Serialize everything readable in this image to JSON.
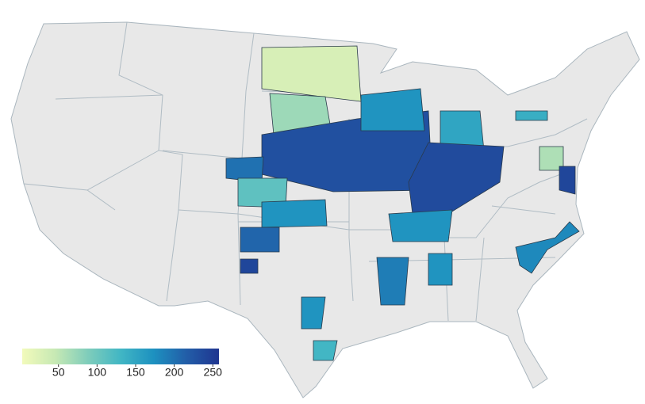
{
  "map": {
    "colorscale": [
      "#f2fabb",
      "#c7e9b4",
      "#7fcdbb",
      "#41b6c4",
      "#1d91c0",
      "#225ea8",
      "#1f3590"
    ],
    "colorbar": {
      "range": [
        3,
        258
      ],
      "ticks": [
        50,
        100,
        150,
        200,
        250
      ]
    },
    "regions": [
      {
        "value": 30
      },
      {
        "value": 70
      },
      {
        "value": 230
      },
      {
        "value": 200
      },
      {
        "value": 110
      },
      {
        "value": 170
      },
      {
        "value": 210
      },
      {
        "value": 240
      },
      {
        "value": 170
      },
      {
        "value": 150
      },
      {
        "value": 235
      },
      {
        "value": 170
      },
      {
        "value": 190
      },
      {
        "value": 170
      },
      {
        "value": 130
      },
      {
        "value": 180
      },
      {
        "value": 60
      },
      {
        "value": 240
      },
      {
        "value": 140
      },
      {
        "value": 170
      }
    ]
  }
}
